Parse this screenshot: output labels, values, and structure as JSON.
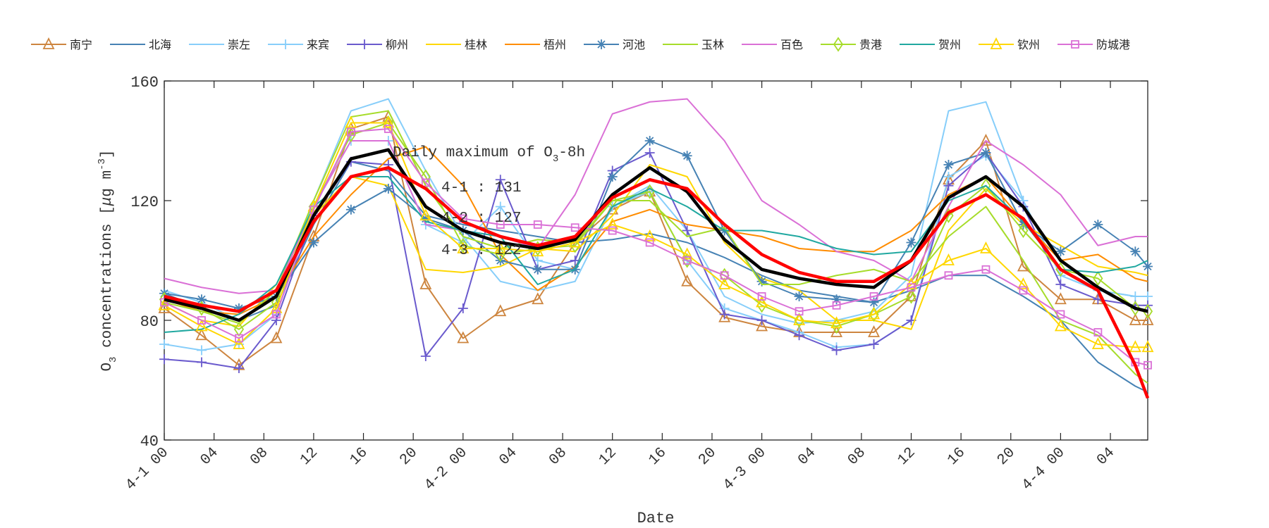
{
  "chart_data": {
    "type": "line",
    "xlabel": "Date",
    "ylabel_parts": {
      "o": "O",
      "sub": "3",
      "rest": " concentrations [",
      "mu": "μ",
      "unit": "g m",
      "sup": "-3",
      "close": "]"
    },
    "ylim": [
      40,
      160
    ],
    "yticks": [
      40,
      80,
      120,
      160
    ],
    "x_unit": "hours since 4-1 00",
    "xlim": [
      0,
      79
    ],
    "xtick_labels": [
      "4-1 00",
      "04",
      "08",
      "12",
      "16",
      "20",
      "4-2 00",
      "04",
      "08",
      "12",
      "16",
      "20",
      "4-3 00",
      "04",
      "08",
      "12",
      "16",
      "20",
      "4-4 00",
      "04"
    ],
    "x": [
      0,
      3,
      6,
      9,
      12,
      15,
      18,
      21,
      24,
      27,
      30,
      33,
      36,
      39,
      42,
      45,
      48,
      51,
      54,
      57,
      60,
      63,
      66,
      69,
      72,
      75,
      78,
      79
    ],
    "annotation": {
      "title_main": "Daily maximum of O",
      "title_sub": "3",
      "title_tail": "-8h",
      "lines": [
        "4-1 : 131",
        "4-2 : 127",
        "4-3 : 122"
      ]
    },
    "legend_placement": "top",
    "series": [
      {
        "name": "南宁",
        "color": "#cd853f",
        "marker": "triangle",
        "values": [
          84,
          75,
          65,
          74,
          108,
          144,
          148,
          92,
          74,
          83,
          87,
          106,
          117,
          123,
          93,
          81,
          78,
          76,
          76,
          76,
          88,
          127,
          140,
          98,
          87,
          87,
          80,
          80
        ]
      },
      {
        "name": "北海",
        "color": "#4682b4",
        "marker": "none",
        "values": [
          89,
          84,
          80,
          85,
          112,
          133,
          130,
          115,
          112,
          110,
          108,
          106,
          107,
          109,
          106,
          101,
          95,
          90,
          88,
          86,
          90,
          95,
          95,
          88,
          80,
          66,
          58,
          56
        ]
      },
      {
        "name": "崇左",
        "color": "#87cefa",
        "marker": "none",
        "values": [
          90,
          86,
          80,
          88,
          120,
          150,
          154,
          130,
          108,
          93,
          90,
          93,
          118,
          125,
          110,
          88,
          82,
          79,
          80,
          83,
          95,
          150,
          153,
          120,
          95,
          90,
          88,
          88
        ]
      },
      {
        "name": "来宾",
        "color": "#87cefa",
        "marker": "plus",
        "values": [
          72,
          70,
          72,
          82,
          118,
          140,
          140,
          112,
          106,
          118,
          100,
          97,
          118,
          123,
          100,
          84,
          80,
          76,
          71,
          72,
          80,
          128,
          135,
          120,
          95,
          90,
          88,
          88
        ]
      },
      {
        "name": "柳州",
        "color": "#6a5acd",
        "marker": "plus",
        "values": [
          67,
          66,
          64,
          80,
          115,
          133,
          132,
          68,
          84,
          127,
          97,
          100,
          130,
          136,
          110,
          82,
          80,
          75,
          70,
          72,
          80,
          125,
          136,
          118,
          92,
          87,
          85,
          85
        ]
      },
      {
        "name": "桂林",
        "color": "#ffd700",
        "marker": "none",
        "values": [
          86,
          80,
          78,
          92,
          115,
          128,
          125,
          97,
          96,
          98,
          104,
          103,
          115,
          132,
          128,
          106,
          94,
          90,
          80,
          80,
          77,
          110,
          124,
          112,
          105,
          98,
          96,
          95
        ]
      },
      {
        "name": "梧州",
        "color": "#ff8c00",
        "marker": "none",
        "values": [
          87,
          83,
          82,
          88,
          108,
          122,
          134,
          138,
          125,
          102,
          90,
          98,
          113,
          117,
          112,
          110,
          108,
          104,
          103,
          103,
          110,
          122,
          128,
          113,
          100,
          102,
          94,
          93
        ]
      },
      {
        "name": "河池",
        "color": "#4682b4",
        "marker": "asterisk",
        "values": [
          89,
          87,
          84,
          88,
          106,
          117,
          124,
          114,
          110,
          100,
          97,
          97,
          128,
          140,
          135,
          110,
          93,
          88,
          87,
          86,
          106,
          132,
          136,
          112,
          103,
          112,
          103,
          98
        ]
      },
      {
        "name": "玉林",
        "color": "#a6dc2a",
        "marker": "none",
        "values": [
          86,
          83,
          79,
          90,
          120,
          148,
          150,
          125,
          108,
          104,
          107,
          106,
          120,
          120,
          108,
          111,
          92,
          92,
          95,
          97,
          93,
          108,
          118,
          100,
          80,
          75,
          62,
          59
        ]
      },
      {
        "name": "百色",
        "color": "#da70d6",
        "marker": "none",
        "values": [
          94,
          91,
          89,
          90,
          118,
          140,
          140,
          112,
          110,
          108,
          104,
          122,
          149,
          153,
          154,
          140,
          120,
          112,
          103,
          100,
          93,
          118,
          140,
          132,
          122,
          105,
          108,
          108
        ]
      },
      {
        "name": "贵港",
        "color": "#a6dc2a",
        "marker": "diamond",
        "values": [
          87,
          84,
          77,
          86,
          118,
          142,
          146,
          128,
          105,
          102,
          104,
          105,
          120,
          123,
          100,
          95,
          85,
          80,
          78,
          82,
          88,
          115,
          125,
          110,
          97,
          94,
          84,
          83
        ]
      },
      {
        "name": "贺州",
        "color": "#20a8a0",
        "marker": "none",
        "values": [
          76,
          77,
          82,
          92,
          118,
          128,
          128,
          113,
          110,
          108,
          92,
          97,
          118,
          124,
          118,
          110,
          110,
          108,
          104,
          102,
          103,
          120,
          125,
          113,
          97,
          96,
          98,
          100
        ]
      },
      {
        "name": "钦州",
        "color": "#ffd700",
        "marker": "triangle",
        "values": [
          85,
          78,
          72,
          84,
          118,
          146,
          146,
          115,
          104,
          104,
          103,
          106,
          112,
          108,
          102,
          92,
          86,
          80,
          79,
          82,
          92,
          100,
          104,
          92,
          78,
          72,
          71,
          71
        ]
      },
      {
        "name": "防城港",
        "color": "#da70d6",
        "marker": "square",
        "values": [
          86,
          80,
          74,
          82,
          117,
          143,
          144,
          126,
          114,
          112,
          112,
          111,
          110,
          106,
          100,
          95,
          88,
          83,
          85,
          88,
          91,
          95,
          97,
          90,
          82,
          76,
          66,
          65
        ]
      }
    ],
    "mean_line": {
      "color": "#000000",
      "values": [
        87,
        84,
        80,
        88,
        115,
        134,
        137,
        118,
        110,
        106,
        104,
        107,
        122,
        131,
        123,
        107,
        97,
        94,
        92,
        91,
        100,
        121,
        128,
        118,
        100,
        91,
        84,
        83
      ]
    },
    "smoothed_line": {
      "color": "#ff0000",
      "values": [
        88,
        85,
        83,
        90,
        113,
        128,
        131,
        124,
        113,
        108,
        105,
        108,
        121,
        127,
        124,
        112,
        102,
        96,
        93,
        93,
        100,
        116,
        122,
        114,
        97,
        90,
        65,
        54
      ]
    }
  }
}
